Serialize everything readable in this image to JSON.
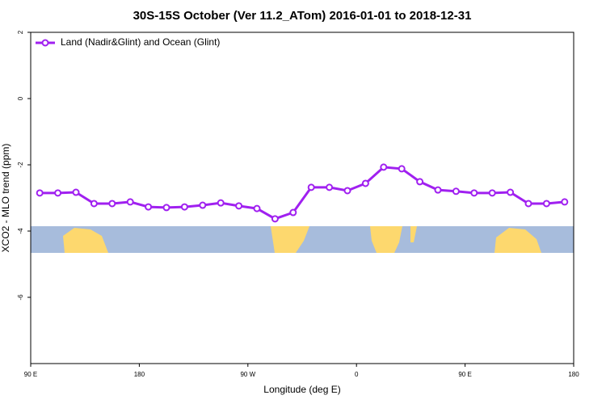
{
  "chart_data": {
    "type": "line",
    "title": "30S-15S October (Ver 11.2_ATom)   2016-01-01 to 2018-12-31",
    "x_label": "Longitude (deg E)",
    "y_label": "XCO2 - MLO trend (ppm)",
    "x": [
      97.5,
      112.5,
      127.5,
      142.5,
      157.5,
      172.5,
      187.5,
      202.5,
      217.5,
      232.5,
      247.5,
      262.5,
      277.5,
      292.5,
      307.5,
      322.5,
      337.5,
      352.5,
      367.5,
      382.5,
      397.5,
      412.5,
      427.5,
      442.5,
      457.5,
      472.5,
      487.5,
      502.5,
      517.5,
      532.5
    ],
    "series": [
      {
        "name": "Land (Nadir&Glint) and Ocean (Glint)",
        "color": "#a020f0",
        "values": [
          -2.85,
          -2.85,
          -2.83,
          -3.17,
          -3.17,
          -3.12,
          -3.27,
          -3.29,
          -3.27,
          -3.22,
          -3.15,
          -3.24,
          -3.32,
          -3.63,
          -3.44,
          -2.68,
          -2.68,
          -2.78,
          -2.56,
          -2.07,
          -2.12,
          -2.51,
          -2.76,
          -2.8,
          -2.85,
          -2.85,
          -2.83,
          -3.17,
          -3.17,
          -3.12
        ]
      }
    ],
    "xlim": [
      90,
      540
    ],
    "xticks": [
      {
        "value": 90,
        "label": "90 E"
      },
      180,
      {
        "value": 270,
        "label": "90 W"
      },
      {
        "value": 360,
        "label": "0"
      },
      {
        "value": 450,
        "label": "90 E"
      },
      {
        "value": 540,
        "label": "180"
      }
    ],
    "ylim": [
      -8,
      2
    ],
    "yticks": [
      -6,
      -4,
      -2,
      0,
      2
    ],
    "legend": "top-left"
  }
}
